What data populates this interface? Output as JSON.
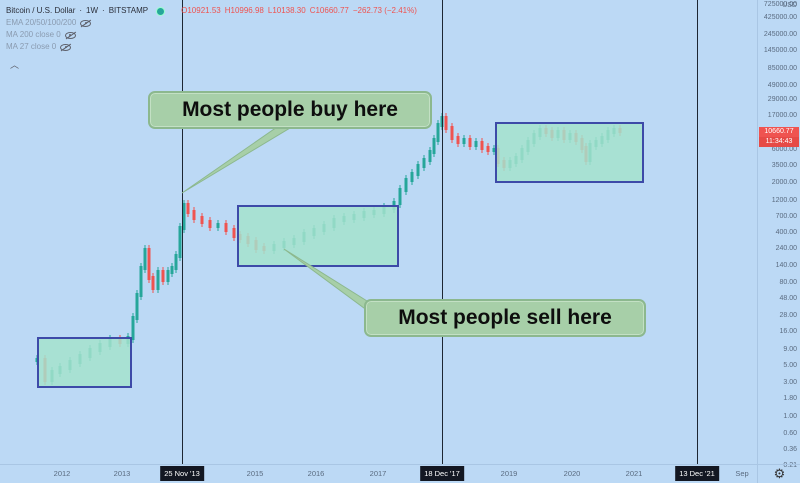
{
  "legend": {
    "symbol": "Bitcoin / U.S. Dollar",
    "interval": "1W",
    "exchange": "BITSTAMP",
    "open": "O10921.53",
    "high": "H10996.98",
    "low": "L10138.30",
    "close": "C10660.77",
    "change": "−262.73 (−2.41%)",
    "indicators": [
      "EMA 20/50/100/200",
      "MA 200 close 0",
      "MA 27 close 0"
    ]
  },
  "price_axis": {
    "currency": "USD",
    "ticks": [
      "725000.00",
      "425000.00",
      "245000.00",
      "145000.00",
      "85000.00",
      "49000.00",
      "29000.00",
      "17000.00",
      "6000.00",
      "3500.00",
      "2000.00",
      "1200.00",
      "700.00",
      "400.00",
      "240.00",
      "140.00",
      "80.00",
      "48.00",
      "28.00",
      "16.00",
      "9.00",
      "5.00",
      "3.00",
      "1.80",
      "1.00",
      "0.60",
      "0.36",
      "0.21"
    ],
    "last_price": "10660.77",
    "countdown": "11:34:43"
  },
  "time_axis": {
    "ticks": [
      "2012",
      "2013",
      "2015",
      "2016",
      "2017",
      "2019",
      "2020",
      "2021",
      "Sep"
    ],
    "markers": [
      "25 Nov '13",
      "18 Dec '17",
      "13 Dec '21"
    ]
  },
  "callouts": {
    "buy": "Most people buy here",
    "sell": "Most people sell here"
  },
  "colors": {
    "background": "#bcd9f5",
    "up": "#26a69a",
    "down": "#ef5350",
    "zone_fill": "#a5e2cd",
    "zone_border": "#3d4aa8",
    "callout_fill": "#a7cfa8"
  }
}
